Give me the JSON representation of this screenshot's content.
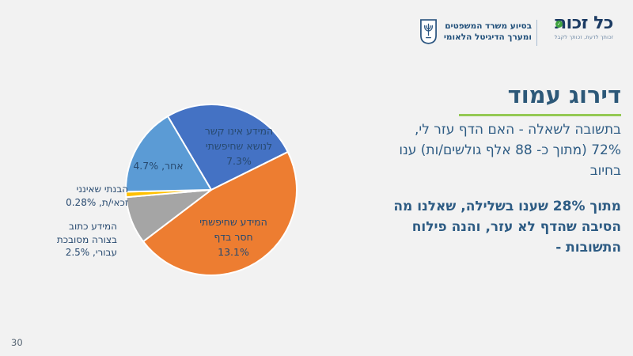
{
  "page": {
    "number": "30",
    "background": "#F2F2F2"
  },
  "header": {
    "logo": {
      "name": "כל זכות",
      "tagline": "זכותך לדעת, זכותך לקבל",
      "badge_check": "✓"
    },
    "ministry": {
      "text": "בסיוע משרד המשפטים\nומערך הדיגיטל הלאומי"
    }
  },
  "title": "דירוג עמוד",
  "body": {
    "paragraph1": "בתשובה לשאלה - האם הדף עזר לי,\n72% (מתוך כ- 88 אלף גולשים/ות) ענו\nבחיוב",
    "paragraph2": "מתוך 28% שענו בשלילה, שאלנו מה\nהסיבה שהדף לא עזר, והנה פילוח\nהתשובות -"
  },
  "chart_data": {
    "type": "pie",
    "title": "",
    "legend": "none",
    "start_angle_deg": -30.6,
    "slices": [
      {
        "label": "המידע אינו קשר לנושא שחיפשתי",
        "value": 7.3,
        "display": "7.3%",
        "color": "#4472C4"
      },
      {
        "label": "המידע שחיפשתי חסר בדף",
        "value": 13.1,
        "display": "13.1%",
        "color": "#ED7D31"
      },
      {
        "label": "המידע כתוב בצורה מסובכת עבורי",
        "value": 2.5,
        "display": "2.5%",
        "color": "#A5A5A5"
      },
      {
        "label": "הבנתי שאינני זכאי/ת",
        "value": 0.28,
        "display": "0.28%",
        "color": "#FFC000"
      },
      {
        "label": "אחר",
        "value": 4.7,
        "display": "4.7%",
        "color": "#5B9BD5"
      }
    ],
    "labels_rendered": {
      "not_related": "המידע אינו קשר\nלנושא שחיפשתי\n7.3%",
      "missing": "המידע שחיפשתי\nחסר בדף\n13.1%",
      "other": "אחר, 4.7%",
      "not_eligible": "הבנתי שאינני\nזכאי/ת, 0.28%",
      "complicated": "המידע כתוב\nבצורה מסובכת\nעבורי, 2.5%"
    },
    "colors": {
      "accent_title": "#2C5878",
      "accent_underline": "#94C954",
      "body_text": "#2E5C84",
      "label_text": "#27496F"
    }
  }
}
